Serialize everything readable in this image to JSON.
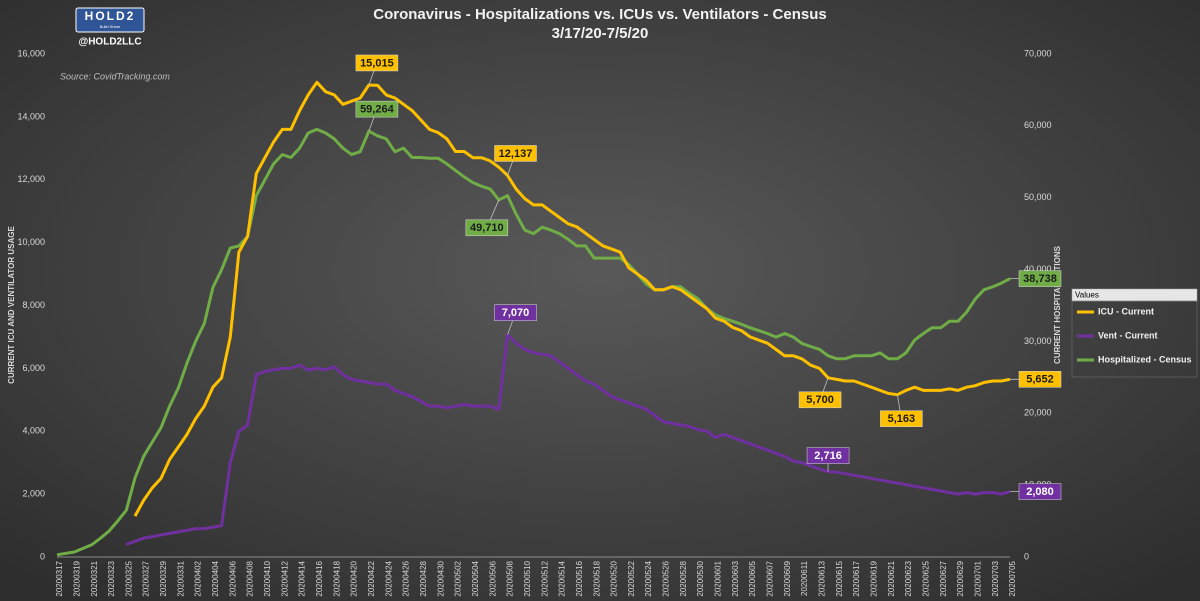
{
  "chart_data": {
    "type": "line",
    "title": "Coronavirus - Hospitalizations vs. ICUs vs. Ventilators - Census",
    "subtitle": "3/17/20-7/5/20",
    "logo": "HOLD2",
    "logo_tagline": "Build Share",
    "handle": "@HOLD2LLC",
    "source": "Source: CovidTracking.com",
    "y_label": "CURRENT ICU AND VENTILATOR USAGE",
    "y2_label": "CURRENT HOSPITALIZATIONS",
    "legend_title": "Values",
    "legend": "right",
    "grid": false,
    "categories": [
      "20200317",
      null,
      "20200319",
      null,
      "20200321",
      null,
      "20200323",
      null,
      "20200325",
      null,
      "20200327",
      null,
      "20200329",
      null,
      "20200331",
      null,
      "20200402",
      null,
      "20200404",
      null,
      "20200406",
      null,
      "20200408",
      null,
      "20200410",
      null,
      "20200412",
      null,
      "20200414",
      null,
      "20200416",
      null,
      "20200418",
      null,
      "20200420",
      null,
      "20200422",
      null,
      "20200424",
      null,
      "20200426",
      null,
      "20200428",
      null,
      "20200430",
      null,
      "20200502",
      null,
      "20200504",
      null,
      "20200506",
      null,
      "20200508",
      null,
      "20200510",
      null,
      "20200512",
      null,
      "20200514",
      null,
      "20200516",
      null,
      "20200518",
      null,
      "20200520",
      null,
      "20200522",
      null,
      "20200524",
      null,
      "20200526",
      null,
      "20200528",
      null,
      "20200530",
      null,
      "20200601",
      null,
      "20200603",
      null,
      "20200605",
      null,
      "20200607",
      null,
      "20200609",
      null,
      "20200611",
      null,
      "20200613",
      null,
      "20200615",
      null,
      "20200617",
      null,
      "20200619",
      null,
      "20200621",
      null,
      "20200623",
      null,
      "20200625",
      null,
      "20200627",
      null,
      "20200629",
      null,
      "20200701",
      null,
      "20200703",
      null,
      "20200705"
    ],
    "ylim": [
      0,
      16000
    ],
    "yticks": [
      0,
      {
        "value": 2000,
        "label": "2,000"
      },
      {
        "value": 4000,
        "label": "4,000"
      },
      {
        "value": 6000,
        "label": "6,000"
      },
      {
        "value": 8000,
        "label": "8,000"
      },
      {
        "value": 10000,
        "label": "10,000"
      },
      {
        "value": 12000,
        "label": "12,000"
      },
      {
        "value": 14000,
        "label": "14,000"
      },
      {
        "value": 16000,
        "label": "16,000"
      }
    ],
    "y2lim": [
      0,
      70000
    ],
    "y2ticks": [
      0,
      {
        "value": 10000,
        "label": "10,000"
      },
      {
        "value": 20000,
        "label": "20,000"
      },
      {
        "value": 30000,
        "label": "30,000"
      },
      {
        "value": 40000,
        "label": "40,000"
      },
      {
        "value": 50000,
        "label": "50,000"
      },
      {
        "value": 60000,
        "label": "60,000"
      },
      {
        "value": 70000,
        "label": "70,000"
      }
    ],
    "series": [
      {
        "name": "ICU - Current",
        "color": "#ffc000",
        "axis": "y",
        "values": [
          null,
          null,
          null,
          null,
          null,
          null,
          null,
          null,
          null,
          1300,
          1800,
          2200,
          2500,
          3100,
          3500,
          3900,
          4400,
          4800,
          5400,
          5700,
          7000,
          9700,
          10200,
          12200,
          12700,
          13200,
          13600,
          13600,
          14200,
          14700,
          15100,
          14800,
          14700,
          14400,
          14500,
          14600,
          15015,
          15000,
          14700,
          14600,
          14400,
          14200,
          13900,
          13600,
          13500,
          13300,
          12900,
          12900,
          12700,
          12700,
          12600,
          12400,
          12137,
          11700,
          11400,
          11200,
          11200,
          11000,
          10800,
          10600,
          10500,
          10300,
          10100,
          9900,
          9800,
          9700,
          9200,
          9000,
          8800,
          8500,
          8500,
          8600,
          8500,
          8300,
          8100,
          7900,
          7600,
          7500,
          7300,
          7200,
          7000,
          6900,
          6800,
          6600,
          6400,
          6400,
          6300,
          6100,
          6000,
          5700,
          5650,
          5600,
          5600,
          5500,
          5400,
          5300,
          5200,
          5163,
          5300,
          5400,
          5300,
          5300,
          5300,
          5350,
          5300,
          5400,
          5450,
          5550,
          5600,
          5600,
          5652
        ],
        "value_labels": [
          null,
          null,
          null,
          null,
          null,
          null,
          null,
          null,
          null,
          null,
          null,
          null,
          null,
          null,
          null,
          null,
          null,
          null,
          null,
          null,
          null,
          null,
          null,
          null,
          null,
          null,
          null,
          null,
          null,
          null,
          null,
          null,
          null,
          null,
          null,
          null,
          "15,015",
          null,
          null,
          null,
          null,
          null,
          null,
          null,
          null,
          null,
          null,
          null,
          null,
          null,
          null,
          null,
          "12,137",
          null,
          null,
          null,
          null,
          null,
          null,
          null,
          null,
          null,
          null,
          null,
          null,
          null,
          null,
          null,
          null,
          null,
          null,
          null,
          null,
          null,
          null,
          null,
          null,
          null,
          null,
          null,
          null,
          null,
          null,
          null,
          null,
          null,
          null,
          null,
          null,
          "5,700",
          null,
          null,
          null,
          null,
          null,
          null,
          null,
          "5,163",
          null,
          null,
          null,
          null,
          null,
          null,
          null,
          null,
          null,
          null,
          null,
          null,
          "5,652"
        ]
      },
      {
        "name": "Vent - Current",
        "color": "#7030a0",
        "axis": "y",
        "values": [
          null,
          null,
          null,
          null,
          null,
          null,
          null,
          null,
          400,
          500,
          600,
          650,
          700,
          750,
          800,
          850,
          900,
          900,
          950,
          1000,
          3000,
          4000,
          4200,
          5800,
          5900,
          5950,
          6000,
          6000,
          6100,
          5950,
          6000,
          5950,
          6050,
          5800,
          5650,
          5600,
          5550,
          5500,
          5500,
          5300,
          5200,
          5100,
          4950,
          4800,
          4800,
          4750,
          4800,
          4850,
          4800,
          4800,
          4800,
          4700,
          7070,
          6800,
          6600,
          6500,
          6450,
          6400,
          6200,
          6000,
          5800,
          5600,
          5500,
          5300,
          5100,
          5000,
          4900,
          4800,
          4700,
          4500,
          4300,
          4250,
          4200,
          4150,
          4050,
          4000,
          3800,
          3900,
          3800,
          3700,
          3600,
          3500,
          3400,
          3300,
          3200,
          3050,
          3000,
          2900,
          2800,
          2716,
          2700,
          2650,
          2600,
          2550,
          2500,
          2450,
          2400,
          2350,
          2300,
          2250,
          2200,
          2150,
          2100,
          2050,
          2000,
          2050,
          2000,
          2050,
          2050,
          2000,
          2080
        ],
        "value_labels": [
          null,
          null,
          null,
          null,
          null,
          null,
          null,
          null,
          null,
          null,
          null,
          null,
          null,
          null,
          null,
          null,
          null,
          null,
          null,
          null,
          null,
          null,
          null,
          null,
          null,
          null,
          null,
          null,
          null,
          null,
          null,
          null,
          null,
          null,
          null,
          null,
          null,
          null,
          null,
          null,
          null,
          null,
          null,
          null,
          null,
          null,
          null,
          null,
          null,
          null,
          null,
          null,
          "7,070",
          null,
          null,
          null,
          null,
          null,
          null,
          null,
          null,
          null,
          null,
          null,
          null,
          null,
          null,
          null,
          null,
          null,
          null,
          null,
          null,
          null,
          null,
          null,
          null,
          null,
          null,
          null,
          null,
          null,
          null,
          null,
          null,
          null,
          null,
          null,
          null,
          "2,716",
          null,
          null,
          null,
          null,
          null,
          null,
          null,
          null,
          null,
          null,
          null,
          null,
          null,
          null,
          null,
          null,
          null,
          null,
          null,
          null,
          "2,080"
        ]
      },
      {
        "name": "Hospitalized - Census",
        "color": "#70ad47",
        "axis": "y2",
        "values": [
          300,
          500,
          700,
          1200,
          1700,
          2600,
          3600,
          5000,
          6500,
          11000,
          14000,
          16000,
          18000,
          21000,
          23500,
          27000,
          30000,
          32500,
          37500,
          40000,
          43000,
          43300,
          44600,
          50300,
          52500,
          54700,
          56000,
          55600,
          56900,
          59000,
          59500,
          59000,
          58200,
          56900,
          56000,
          56400,
          59264,
          58600,
          58200,
          56400,
          56900,
          55600,
          55600,
          55500,
          55500,
          54700,
          53800,
          52900,
          52100,
          51600,
          51200,
          49710,
          50300,
          47700,
          45500,
          45000,
          45900,
          45500,
          45000,
          44200,
          43300,
          43300,
          41600,
          41600,
          41600,
          41600,
          40700,
          39400,
          38000,
          37200,
          37200,
          37600,
          37600,
          36700,
          35900,
          34600,
          33700,
          33200,
          32800,
          32400,
          31900,
          31500,
          31100,
          30600,
          31100,
          30600,
          29700,
          29300,
          28900,
          28000,
          27600,
          27600,
          28000,
          28000,
          28000,
          28400,
          27600,
          27600,
          28400,
          30200,
          31100,
          31900,
          31900,
          32800,
          32800,
          34100,
          35900,
          37200,
          37600,
          38100,
          38738
        ],
        "value_labels": [
          null,
          null,
          null,
          null,
          null,
          null,
          null,
          null,
          null,
          null,
          null,
          null,
          null,
          null,
          null,
          null,
          null,
          null,
          null,
          null,
          null,
          null,
          null,
          null,
          null,
          null,
          null,
          null,
          null,
          null,
          null,
          null,
          null,
          null,
          null,
          null,
          "59,264",
          null,
          null,
          null,
          null,
          null,
          null,
          null,
          null,
          null,
          null,
          null,
          null,
          null,
          null,
          "49,710",
          null,
          null,
          null,
          null,
          null,
          null,
          null,
          null,
          null,
          null,
          null,
          null,
          null,
          null,
          null,
          null,
          null,
          null,
          null,
          null,
          null,
          null,
          null,
          null,
          null,
          null,
          null,
          null,
          null,
          null,
          null,
          null,
          null,
          null,
          null,
          null,
          null,
          null,
          null,
          null,
          null,
          null,
          null,
          null,
          null,
          null,
          null,
          null,
          null,
          null,
          null,
          null,
          null,
          null,
          null,
          null,
          null,
          null,
          "38,738"
        ]
      }
    ]
  }
}
